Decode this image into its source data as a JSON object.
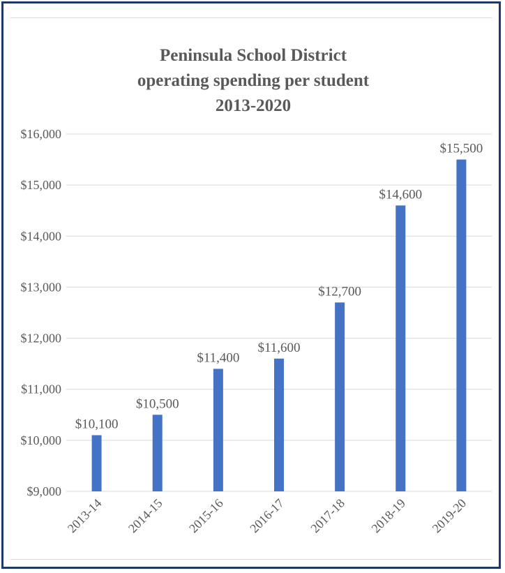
{
  "chart_data": {
    "type": "bar",
    "title_lines": [
      "Peninsula  School District",
      "operating  spending per student",
      "2013-2020"
    ],
    "categories": [
      "2013-14",
      "2014-15",
      "2015-16",
      "2016-17",
      "2017-18",
      "2018-19",
      "2019-20"
    ],
    "values": [
      10100,
      10500,
      11400,
      11600,
      12700,
      14600,
      15500
    ],
    "data_labels": [
      "$10,100",
      "$10,500",
      "$11,400",
      "$11,600",
      "$12,700",
      "$14,600",
      "$15,500"
    ],
    "y_ticks": [
      "$9,000",
      "$10,000",
      "$11,000",
      "$12,000",
      "$13,000",
      "$14,000",
      "$15,000",
      "$16,000"
    ],
    "y_tick_values": [
      9000,
      10000,
      11000,
      12000,
      13000,
      14000,
      15000,
      16000
    ],
    "ylim": [
      9000,
      16000
    ],
    "xlabel": "",
    "ylabel": "",
    "grid": true,
    "legend": "none",
    "colors": {
      "bar": "#4472c4",
      "grid": "#d9d9d9",
      "text": "#595959",
      "frame": "#1f3864"
    }
  }
}
